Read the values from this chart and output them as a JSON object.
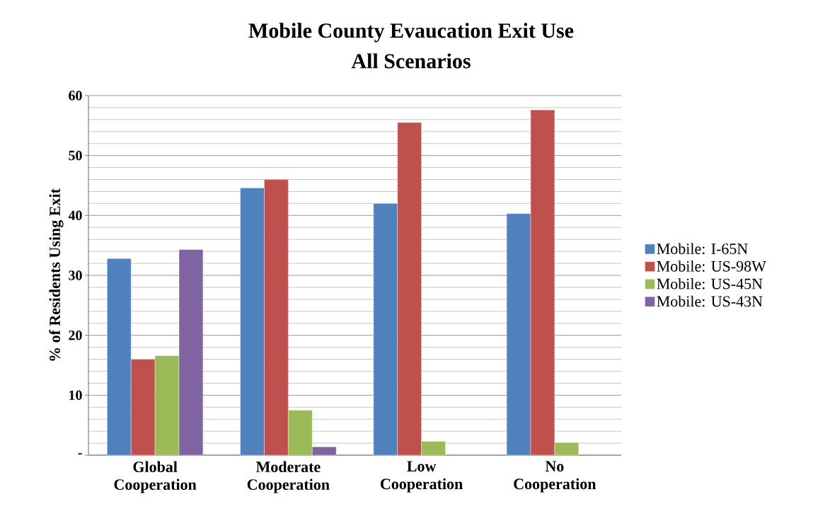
{
  "chart_data": {
    "type": "bar",
    "title": "Mobile County Evaucation Exit Use",
    "subtitle": "All Scenarios",
    "ylabel": "% of Residents Using Exit",
    "categories": [
      "Global Cooperation",
      "Moderate Cooperation",
      "Low Cooperation",
      "No Cooperation"
    ],
    "series": [
      {
        "name": "Mobile: I-65N",
        "color": "#4f81bd",
        "values": [
          32.8,
          44.6,
          42.0,
          40.3
        ]
      },
      {
        "name": "Mobile: US-98W",
        "color": "#c0504d",
        "values": [
          16.0,
          46.0,
          55.5,
          57.6
        ]
      },
      {
        "name": "Mobile: US-45N",
        "color": "#9bbb59",
        "values": [
          16.6,
          7.5,
          2.3,
          2.1
        ]
      },
      {
        "name": "Mobile: US-43N",
        "color": "#8064a2",
        "values": [
          34.3,
          1.4,
          null,
          null
        ]
      }
    ],
    "ylim": [
      0,
      60
    ],
    "yticks": [
      {
        "value": 0,
        "label": "-"
      },
      10,
      20,
      30,
      40,
      50,
      60
    ],
    "grid": "y",
    "legend": "right"
  }
}
